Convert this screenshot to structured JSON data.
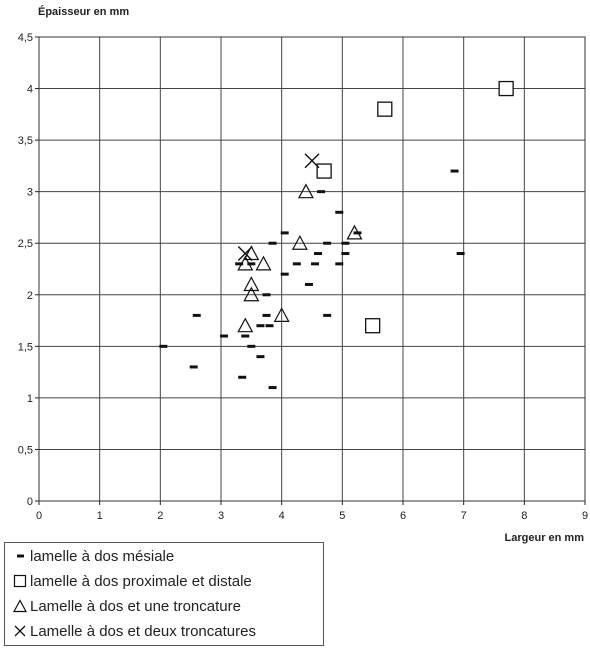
{
  "chart_data": {
    "type": "scatter",
    "title": "",
    "xlabel": "Largeur en mm",
    "ylabel": "Épaisseur en mm",
    "xlim": [
      0,
      9
    ],
    "ylim": [
      0,
      4.5
    ],
    "xticks": [
      "0",
      "1",
      "2",
      "3",
      "4",
      "5",
      "6",
      "7",
      "8",
      "9"
    ],
    "yticks": [
      "0",
      "0,5",
      "1",
      "1,5",
      "2",
      "2,5",
      "3",
      "3,5",
      "4",
      "4,5"
    ],
    "grid": true,
    "legend": "bottom-left",
    "series": [
      {
        "name": "lamelle à dos mésiale",
        "marker": "dash",
        "points": [
          [
            2.05,
            1.5
          ],
          [
            2.55,
            1.3
          ],
          [
            2.6,
            1.8
          ],
          [
            3.05,
            1.6
          ],
          [
            3.3,
            2.3
          ],
          [
            3.35,
            1.2
          ],
          [
            3.4,
            1.6
          ],
          [
            3.5,
            1.5
          ],
          [
            3.5,
            2.3
          ],
          [
            3.65,
            1.4
          ],
          [
            3.65,
            1.7
          ],
          [
            3.75,
            1.8
          ],
          [
            3.75,
            2.0
          ],
          [
            3.8,
            1.7
          ],
          [
            3.85,
            1.1
          ],
          [
            3.85,
            2.5
          ],
          [
            4.05,
            2.2
          ],
          [
            4.05,
            2.6
          ],
          [
            4.25,
            2.3
          ],
          [
            4.45,
            2.1
          ],
          [
            4.55,
            2.3
          ],
          [
            4.6,
            2.4
          ],
          [
            4.65,
            3.0
          ],
          [
            4.75,
            1.8
          ],
          [
            4.75,
            2.5
          ],
          [
            4.95,
            2.3
          ],
          [
            4.95,
            2.8
          ],
          [
            5.05,
            2.4
          ],
          [
            5.05,
            2.5
          ],
          [
            5.25,
            2.6
          ],
          [
            6.85,
            3.2
          ],
          [
            6.95,
            2.4
          ]
        ]
      },
      {
        "name": "lamelle à dos proximale et distale",
        "marker": "square",
        "points": [
          [
            4.7,
            3.2
          ],
          [
            5.5,
            1.7
          ],
          [
            5.7,
            3.8
          ],
          [
            7.7,
            4.0
          ]
        ]
      },
      {
        "name": "Lamelle à dos et une troncature",
        "marker": "triangle",
        "points": [
          [
            3.4,
            1.7
          ],
          [
            3.4,
            2.3
          ],
          [
            3.5,
            2.4
          ],
          [
            3.5,
            2.1
          ],
          [
            3.5,
            2.0
          ],
          [
            3.7,
            2.3
          ],
          [
            4.0,
            1.8
          ],
          [
            4.3,
            2.5
          ],
          [
            4.4,
            3.0
          ],
          [
            5.2,
            2.6
          ]
        ]
      },
      {
        "name": "Lamelle à dos et deux troncatures",
        "marker": "cross",
        "points": [
          [
            3.4,
            2.4
          ],
          [
            4.5,
            3.3
          ]
        ]
      }
    ]
  }
}
